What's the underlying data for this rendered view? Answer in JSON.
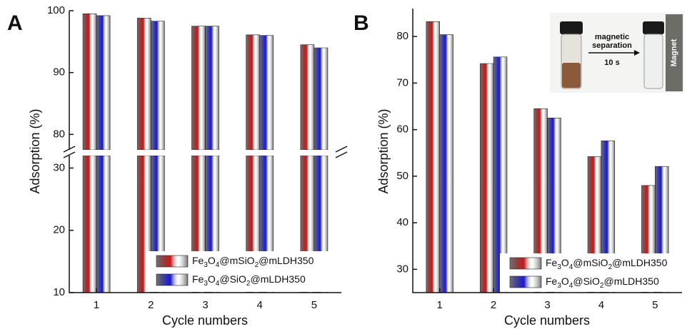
{
  "chart_data": [
    {
      "type": "broken-bar",
      "panel_label": "A",
      "xlabel": "Cycle numbers",
      "ylabel": "Adsorption (%)",
      "categories": [
        1,
        2,
        3,
        4,
        5
      ],
      "series": [
        {
          "name": "Fe3O4@mSiO2@mLDH350",
          "color": "#d01818",
          "values": [
            99.5,
            98.8,
            97.5,
            96.1,
            94.5
          ]
        },
        {
          "name": "Fe3O4@SiO2@mLDH350",
          "color": "#1818e0",
          "values": [
            99.2,
            98.3,
            97.5,
            96.0,
            94.0
          ]
        }
      ],
      "ylim_lower": [
        10,
        32
      ],
      "ylim_upper": [
        77.5,
        100
      ],
      "yticks": [
        10,
        20,
        30,
        80,
        90,
        100
      ],
      "legend": "lower right"
    },
    {
      "type": "bar",
      "panel_label": "B",
      "xlabel": "Cycle numbers",
      "ylabel": "Adsorption (%)",
      "categories": [
        1,
        2,
        3,
        4,
        5
      ],
      "series": [
        {
          "name": "Fe3O4@mSiO2@mLDH350",
          "color": "#d01818",
          "values": [
            83.2,
            74.2,
            64.5,
            54.2,
            48.0
          ]
        },
        {
          "name": "Fe3O4@SiO2@mLDH350",
          "color": "#1818e0",
          "values": [
            80.4,
            75.6,
            62.5,
            57.6,
            52.1
          ]
        }
      ],
      "ylim": [
        25,
        86
      ],
      "yticks": [
        30,
        40,
        50,
        60,
        70,
        80
      ],
      "legend": "lower right",
      "annotations": [
        "magnetic",
        "separation",
        "10 s",
        "Magnet"
      ]
    }
  ]
}
